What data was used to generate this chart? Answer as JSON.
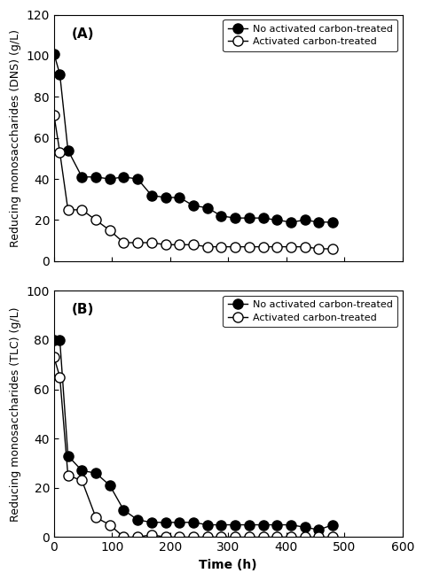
{
  "A_filled_x": [
    0,
    10,
    24,
    48,
    72,
    96,
    120,
    144,
    168,
    192,
    216,
    240,
    264,
    288,
    312,
    336,
    360,
    384,
    408,
    432,
    456,
    480
  ],
  "A_filled_y": [
    101,
    91,
    54,
    41,
    41,
    40,
    41,
    40,
    32,
    31,
    31,
    27,
    26,
    22,
    21,
    21,
    21,
    20,
    19,
    20,
    19,
    19
  ],
  "A_open_x": [
    0,
    10,
    24,
    48,
    72,
    96,
    120,
    144,
    168,
    192,
    216,
    240,
    264,
    288,
    312,
    336,
    360,
    384,
    408,
    432,
    456,
    480
  ],
  "A_open_y": [
    71,
    53,
    25,
    25,
    20,
    15,
    9,
    9,
    9,
    8,
    8,
    8,
    7,
    7,
    7,
    7,
    7,
    7,
    7,
    7,
    6,
    6
  ],
  "B_filled_x": [
    0,
    10,
    24,
    48,
    72,
    96,
    120,
    144,
    168,
    192,
    216,
    240,
    264,
    288,
    312,
    336,
    360,
    384,
    408,
    432,
    456,
    480
  ],
  "B_filled_y": [
    80,
    80,
    33,
    27,
    26,
    21,
    11,
    7,
    6,
    6,
    6,
    6,
    5,
    5,
    5,
    5,
    5,
    5,
    5,
    4,
    3,
    5
  ],
  "B_open_x": [
    0,
    10,
    24,
    48,
    72,
    96,
    120,
    144,
    168,
    192,
    216,
    240,
    264,
    288,
    312,
    336,
    360,
    384,
    408,
    432,
    456,
    480
  ],
  "B_open_y": [
    73,
    65,
    25,
    23,
    8,
    5,
    0,
    0,
    1,
    0,
    0,
    0,
    0,
    0,
    0,
    0,
    0,
    0,
    0,
    0,
    0,
    0
  ],
  "ylabel_A": "Reducing monosaccharides (DNS) (g/L)",
  "ylabel_B": "Reducing monosaccharides (TLC) (g/L)",
  "xlabel": "Time (h)",
  "label_filled": "No activated carbon-treated",
  "label_open": "Activated carbon-treated",
  "xlim": [
    0,
    600
  ],
  "xticks": [
    0,
    100,
    200,
    300,
    400,
    500,
    600
  ],
  "ylim_A": [
    0,
    120
  ],
  "yticks_A": [
    0,
    20,
    40,
    60,
    80,
    100,
    120
  ],
  "ylim_B": [
    0,
    100
  ],
  "yticks_B": [
    0,
    20,
    40,
    60,
    80,
    100
  ],
  "panel_A_label": "(A)",
  "panel_B_label": "(B)",
  "marker_size": 8,
  "line_color": "#000000",
  "bg_color": "#ffffff"
}
